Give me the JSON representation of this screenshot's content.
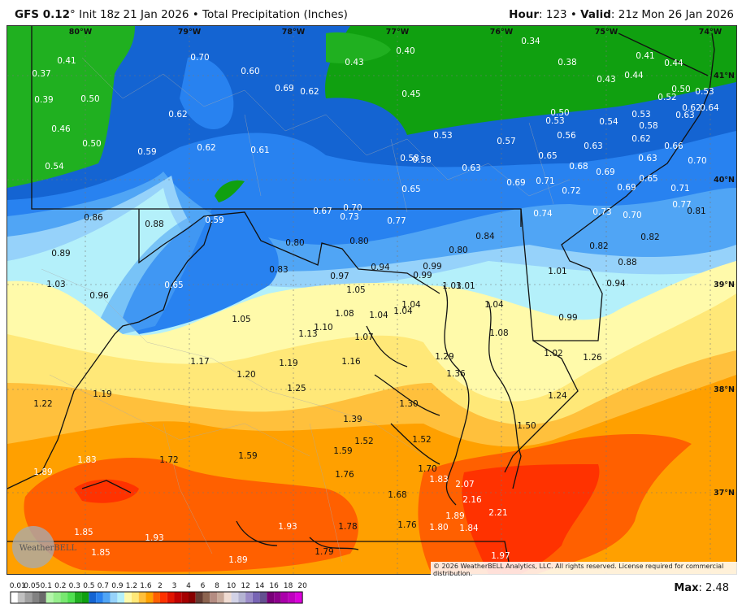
{
  "header": {
    "model": "GFS 0.12",
    "degree": "°",
    "init": " Init 18z 21 Jan 2026 • Total Precipitation (Inches)",
    "hour_label": "Hour",
    "hour_value": ": 123 • ",
    "valid_label": "Valid",
    "valid_value": ": 21z Mon 26 Jan 2026"
  },
  "map": {
    "longitude_labels": [
      "80°W",
      "79°W",
      "78°W",
      "77°W",
      "76°W",
      "75°W",
      "74°W"
    ],
    "latitude_labels": [
      "41°N",
      "40°N",
      "39°N",
      "38°N",
      "37°N"
    ],
    "station_values": [
      "0.41",
      "0.37",
      "0.39",
      "0.50",
      "0.46",
      "0.50",
      "0.54",
      "0.59",
      "0.70",
      "0.60",
      "0.62",
      "0.69",
      "0.62",
      "0.62",
      "0.61",
      "0.43",
      "0.40",
      "0.34",
      "0.38",
      "0.41",
      "0.44",
      "0.43",
      "0.44",
      "0.45",
      "0.50",
      "0.53",
      "0.52",
      "0.62",
      "0.64",
      "0.63",
      "0.50",
      "0.53",
      "0.54",
      "0.53",
      "0.58",
      "0.53",
      "0.57",
      "0.56",
      "0.63",
      "0.62",
      "0.66",
      "0.58",
      "0.58",
      "0.63",
      "0.65",
      "0.68",
      "0.69",
      "0.63",
      "0.70",
      "0.65",
      "0.69",
      "0.71",
      "0.72",
      "0.65",
      "0.69",
      "0.71",
      "0.77",
      "0.81",
      "0.74",
      "0.73",
      "0.70",
      "0.77",
      "0.84",
      "0.82",
      "0.82",
      "0.88",
      "0.80",
      "0.94",
      "0.99",
      "0.99",
      "1.01",
      "0.94",
      "1.03",
      "1.01",
      "0.86",
      "0.88",
      "0.59",
      "0.67",
      "0.70",
      "0.73",
      "0.80",
      "0.80",
      "0.89",
      "0.83",
      "0.97",
      "1.03",
      "0.65",
      "1.05",
      "0.96",
      "1.05",
      "1.08",
      "1.13",
      "1.10",
      "1.07",
      "1.17",
      "1.19",
      "1.16",
      "1.20",
      "1.25",
      "1.19",
      "1.22",
      "1.39",
      "1.52",
      "1.59",
      "1.59",
      "1.72",
      "1.83",
      "1.89",
      "1.76",
      "1.93",
      "1.78",
      "1.85",
      "1.93",
      "1.85",
      "1.79",
      "1.89",
      "1.04",
      "1.04",
      "1.04",
      "1.04",
      "0.99",
      "1.08",
      "1.02",
      "1.29",
      "1.26",
      "1.36",
      "1.30",
      "1.24",
      "1.50",
      "1.52",
      "1.70",
      "1.83",
      "2.07",
      "1.68",
      "2.16",
      "2.21",
      "1.89",
      "1.76",
      "1.80",
      "1.84",
      "1.97"
    ],
    "logo": "WeatherBELL",
    "copyright": "© 2026 WeatherBELL Analytics, LLC. All rights reserved. License required for commercial distribution."
  },
  "legend": {
    "labels": [
      "0.01",
      "0.05",
      "0.1",
      "0.2",
      "0.3",
      "0.5",
      "0.7",
      "0.9",
      "1.2",
      "1.6",
      "2",
      "3",
      "4",
      "6",
      "8",
      "10",
      "12",
      "14",
      "16",
      "18",
      "20"
    ],
    "colors": [
      "#ffffff",
      "#c0c0c0",
      "#a0a0a0",
      "#828282",
      "#6a6a6a",
      "#b4f5aa",
      "#96ee8c",
      "#78e870",
      "#50e050",
      "#20b020",
      "#10a010",
      "#1464d2",
      "#2882f0",
      "#50a5f5",
      "#96d2fa",
      "#b4f0fa",
      "#fffaaa",
      "#ffe878",
      "#ffc03c",
      "#ffa000",
      "#ff6000",
      "#ff3200",
      "#e11400",
      "#c00000",
      "#a50000",
      "#870000",
      "#643c32",
      "#8c6450",
      "#b48c82",
      "#c8aa9b",
      "#f0dcd2",
      "#d2d2e6",
      "#b4b4d2",
      "#9b8cc8",
      "#7864b4",
      "#645090",
      "#780078",
      "#8c008c",
      "#aa00aa",
      "#be00be",
      "#dc00dc"
    ],
    "max_label": "Max",
    "max_value": ": 2.48"
  }
}
